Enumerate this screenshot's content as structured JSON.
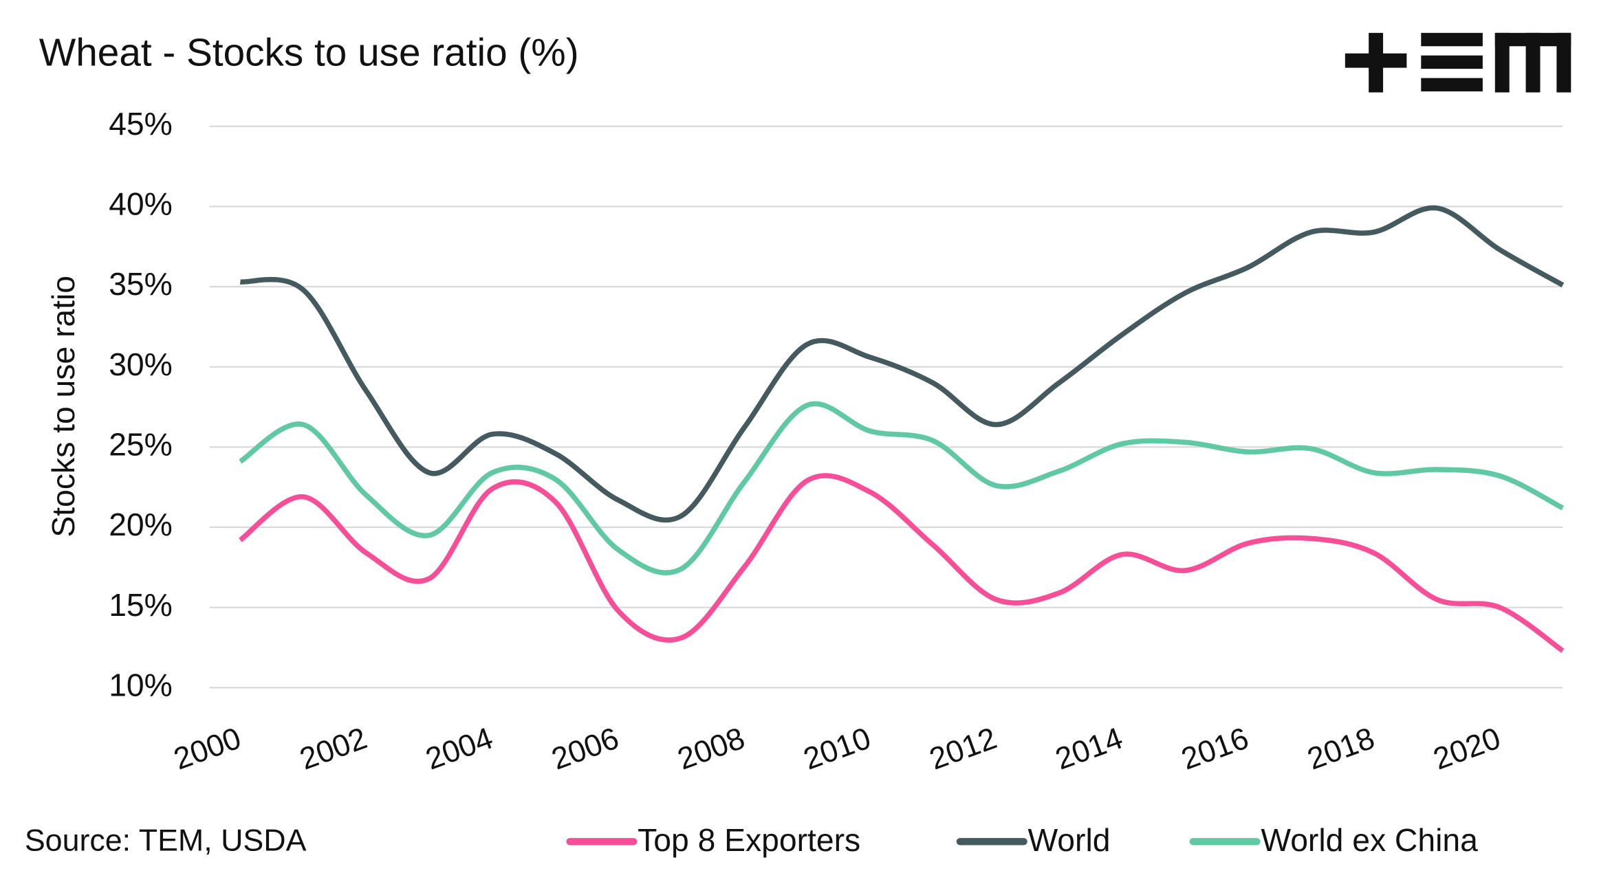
{
  "chart_data": {
    "type": "line",
    "title": "Wheat - Stocks to use ratio (%)",
    "y_label": "Stocks to use ratio",
    "source": "Source: TEM, USDA",
    "categories": [
      "2000",
      null,
      "2002",
      null,
      "2004",
      null,
      "2006",
      null,
      "2008",
      null,
      "2010",
      null,
      "2012",
      null,
      "2014",
      null,
      "2016",
      null,
      "2018",
      null,
      "2020",
      null
    ],
    "series": [
      {
        "name": "Top 8 Exporters",
        "color": "#f74f97",
        "values": [
          19.2,
          21.9,
          18.4,
          16.8,
          22.4,
          21.6,
          14.8,
          13.1,
          17.5,
          22.9,
          22.2,
          18.9,
          15.5,
          15.9,
          18.3,
          17.3,
          19.0,
          19.3,
          18.4,
          15.5,
          15.0,
          12.3
        ]
      },
      {
        "name": "World",
        "color": "#445a5e",
        "values": [
          35.3,
          34.8,
          28.5,
          23.4,
          25.8,
          24.6,
          21.7,
          20.7,
          26.2,
          31.4,
          30.6,
          29.0,
          26.4,
          29.0,
          32.0,
          34.6,
          36.2,
          38.4,
          38.4,
          39.9,
          37.3,
          35.1
        ]
      },
      {
        "name": "World ex China",
        "color": "#60c9a3",
        "values": [
          24.1,
          26.4,
          22.0,
          19.5,
          23.4,
          23.0,
          18.6,
          17.4,
          22.8,
          27.6,
          26.0,
          25.4,
          22.6,
          23.5,
          25.2,
          25.3,
          24.7,
          24.9,
          23.4,
          23.6,
          23.2,
          21.2
        ]
      }
    ],
    "ylim": [
      10,
      45
    ],
    "yticks": [
      {
        "value": 10,
        "label": "10%"
      },
      {
        "value": 15,
        "label": "15%"
      },
      {
        "value": 20,
        "label": "20%"
      },
      {
        "value": 25,
        "label": "25%"
      },
      {
        "value": 30,
        "label": "30%"
      },
      {
        "value": 35,
        "label": "35%"
      },
      {
        "value": 40,
        "label": "40%"
      },
      {
        "value": 45,
        "label": "45%"
      }
    ],
    "grid": true
  }
}
